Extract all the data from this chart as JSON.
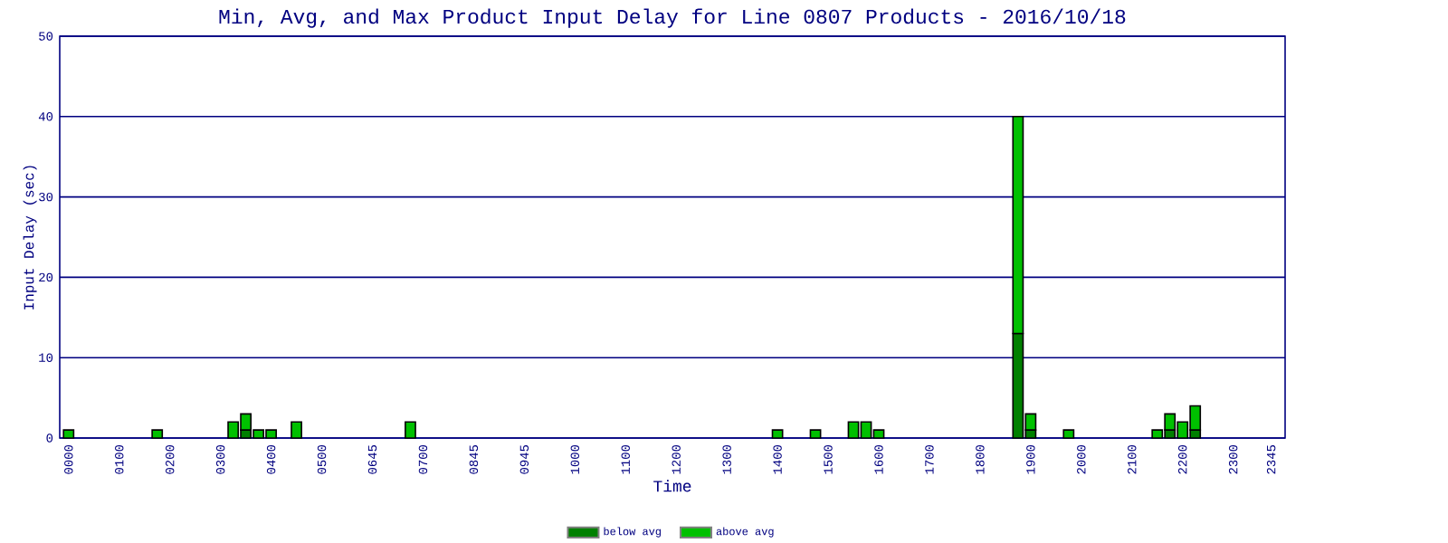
{
  "chart_data": {
    "type": "bar",
    "title": "Min, Avg, and Max Product Input Delay for Line 0807 Products - 2016/10/18",
    "xlabel": "Time",
    "ylabel": "Input Delay (sec)",
    "stacked": true,
    "grid": "y",
    "legend": "bottom",
    "categories": [
      "0000",
      null,
      null,
      null,
      "0100",
      null,
      null,
      null,
      "0200",
      null,
      null,
      null,
      "0300",
      null,
      null,
      null,
      "0400",
      null,
      null,
      null,
      "0500",
      null,
      null,
      null,
      "0645",
      null,
      null,
      null,
      "0700",
      null,
      null,
      null,
      "0845",
      null,
      null,
      null,
      "0945",
      null,
      null,
      null,
      "1000",
      null,
      null,
      null,
      "1100",
      null,
      null,
      null,
      "1200",
      null,
      null,
      null,
      "1300",
      null,
      null,
      null,
      "1400",
      null,
      null,
      null,
      "1500",
      null,
      null,
      null,
      "1600",
      null,
      null,
      null,
      "1700",
      null,
      null,
      null,
      "1800",
      null,
      null,
      null,
      "1900",
      null,
      null,
      null,
      "2000",
      null,
      null,
      null,
      "2100",
      null,
      null,
      null,
      "2200",
      null,
      null,
      null,
      "2300",
      null,
      null,
      "2345"
    ],
    "series": [
      {
        "name": "below avg",
        "color": "#008000",
        "values": [
          null,
          null,
          null,
          null,
          null,
          null,
          null,
          null,
          null,
          null,
          null,
          null,
          null,
          null,
          1,
          null,
          null,
          null,
          null,
          null,
          null,
          null,
          null,
          null,
          null,
          null,
          null,
          null,
          null,
          null,
          null,
          null,
          null,
          null,
          null,
          null,
          null,
          null,
          null,
          null,
          null,
          null,
          null,
          null,
          null,
          null,
          null,
          null,
          null,
          null,
          null,
          null,
          null,
          null,
          null,
          null,
          null,
          null,
          null,
          null,
          null,
          null,
          null,
          null,
          null,
          null,
          null,
          null,
          null,
          null,
          null,
          null,
          null,
          null,
          null,
          13,
          1,
          null,
          null,
          null,
          null,
          null,
          null,
          null,
          null,
          null,
          null,
          1,
          null,
          1,
          null,
          null,
          null,
          null,
          null,
          null
        ]
      },
      {
        "name": "above avg",
        "color": "#00c000",
        "values": [
          1,
          null,
          null,
          null,
          null,
          null,
          null,
          1,
          null,
          null,
          null,
          null,
          null,
          2,
          2,
          1,
          1,
          null,
          2,
          null,
          null,
          null,
          null,
          null,
          null,
          null,
          null,
          2,
          null,
          null,
          null,
          null,
          null,
          null,
          null,
          null,
          null,
          null,
          null,
          null,
          null,
          null,
          null,
          null,
          null,
          null,
          null,
          null,
          null,
          null,
          null,
          null,
          null,
          null,
          null,
          null,
          1,
          null,
          null,
          1,
          null,
          null,
          2,
          2,
          1,
          null,
          null,
          null,
          null,
          null,
          null,
          null,
          null,
          null,
          null,
          27,
          2,
          null,
          null,
          1,
          null,
          null,
          null,
          null,
          null,
          null,
          1,
          2,
          2,
          3,
          null,
          null,
          null,
          null,
          null,
          null
        ]
      }
    ],
    "ylim": [
      0,
      50
    ],
    "yticks": [
      0,
      10,
      20,
      30,
      40,
      50
    ]
  }
}
